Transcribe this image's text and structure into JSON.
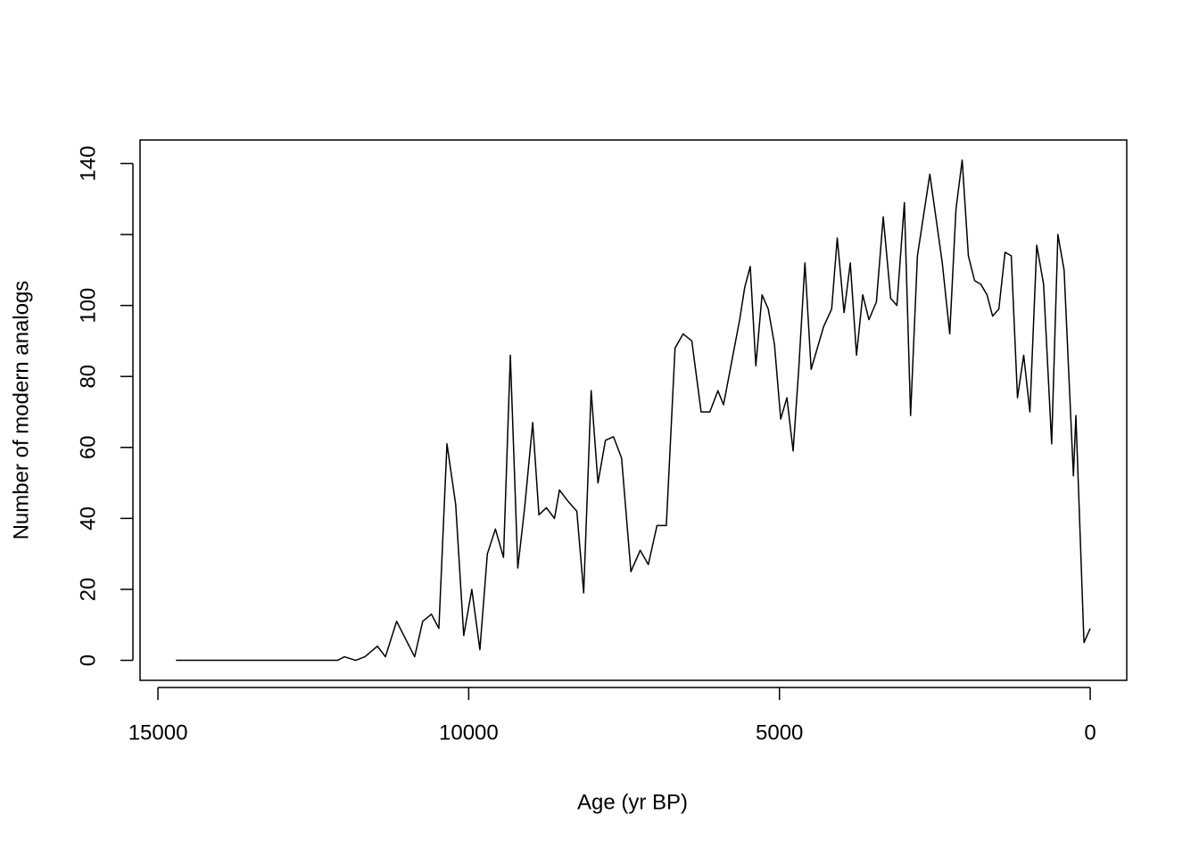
{
  "chart_data": {
    "type": "line",
    "x_label": "Age (yr BP)",
    "y_label": "Number of modern analogs",
    "color": "#000000",
    "x": [
      14710,
      12110,
      12000,
      11820,
      11670,
      11470,
      11340,
      11160,
      10870,
      10740,
      10600,
      10480,
      10350,
      10210,
      10080,
      9950,
      9820,
      9700,
      9570,
      9440,
      9330,
      9210,
      9100,
      8970,
      8870,
      8750,
      8620,
      8540,
      8410,
      8260,
      8150,
      8030,
      7920,
      7800,
      7670,
      7540,
      7390,
      7240,
      7110,
      6970,
      6820,
      6680,
      6550,
      6410,
      6260,
      6120,
      5990,
      5900,
      5770,
      5640,
      5560,
      5470,
      5380,
      5280,
      5180,
      5080,
      4980,
      4880,
      4780,
      4690,
      4590,
      4490,
      4290,
      4160,
      4070,
      3960,
      3860,
      3760,
      3660,
      3560,
      3440,
      3330,
      3210,
      3110,
      2990,
      2890,
      2780,
      2580,
      2380,
      2260,
      2160,
      2060,
      1960,
      1860,
      1760,
      1660,
      1570,
      1470,
      1370,
      1270,
      1170,
      1070,
      970,
      860,
      750,
      620,
      520,
      420,
      270,
      230,
      100,
      0
    ],
    "values": [
      0,
      0,
      1,
      0,
      1,
      4,
      1,
      11,
      1,
      11,
      13,
      9,
      61,
      44,
      7,
      20,
      3,
      30,
      37,
      29,
      86,
      26,
      43,
      67,
      41,
      43,
      40,
      48,
      45,
      42,
      19,
      76,
      50,
      62,
      63,
      57,
      25,
      31,
      27,
      38,
      38,
      88,
      92,
      90,
      70,
      70,
      76,
      72,
      84,
      96,
      105,
      111,
      83,
      103,
      99,
      89,
      68,
      74,
      59,
      82,
      112,
      82,
      94,
      99,
      119,
      98,
      112,
      86,
      103,
      96,
      101,
      125,
      102,
      100,
      129,
      69,
      114,
      137,
      112,
      92,
      127,
      141,
      114,
      107,
      106,
      103,
      97,
      99,
      115,
      114,
      74,
      86,
      70,
      117,
      106,
      61,
      120,
      110,
      52,
      69,
      5,
      9
    ],
    "xlim": [
      15288,
      -588
    ],
    "ylim": [
      -5.64,
      146.64
    ],
    "xticks": [
      15000,
      10000,
      5000,
      0
    ],
    "yticks": [
      0,
      20,
      40,
      60,
      80,
      100,
      {
        "value": 120,
        "label": null
      },
      140
    ]
  }
}
